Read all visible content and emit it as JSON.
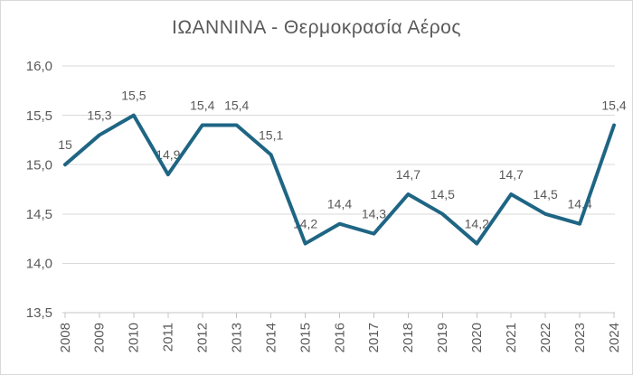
{
  "chart_data": {
    "type": "line",
    "title": "ΙΩΑΝΝΙΝΑ - Θερμοκρασία Αέρος",
    "categories": [
      "2008",
      "2009",
      "2010",
      "2011",
      "2012",
      "2013",
      "2014",
      "2015",
      "2016",
      "2017",
      "2018",
      "2019",
      "2020",
      "2021",
      "2022",
      "2023",
      "2024"
    ],
    "values": [
      15,
      15.3,
      15.5,
      14.9,
      15.4,
      15.4,
      15.1,
      14.2,
      14.4,
      14.3,
      14.7,
      14.5,
      14.2,
      14.7,
      14.5,
      14.4,
      15.4
    ],
    "value_labels": [
      "15",
      "15,3",
      "15,5",
      "14,9",
      "15,4",
      "15,4",
      "15,1",
      "14,2",
      "14,4",
      "14,3",
      "14,7",
      "14,5",
      "14,2",
      "14,7",
      "14,5",
      "14,4",
      "15,4"
    ],
    "ylim": [
      13.5,
      16.0
    ],
    "y_ticks": [
      {
        "value": 13.5,
        "label": "13,5"
      },
      {
        "value": 14.0,
        "label": "14,0"
      },
      {
        "value": 14.5,
        "label": "14,5"
      },
      {
        "value": 15.0,
        "label": "15,0"
      },
      {
        "value": 15.5,
        "label": "15,5"
      },
      {
        "value": 16.0,
        "label": "16,0"
      }
    ],
    "grid": "horizontal",
    "legend": "none",
    "colors": {
      "line": "#1f6584",
      "grid": "#d9d9d9",
      "axis": "#c4c4c4",
      "text": "#595959",
      "background": "#ffffff",
      "border": "#d9d9d9"
    }
  }
}
